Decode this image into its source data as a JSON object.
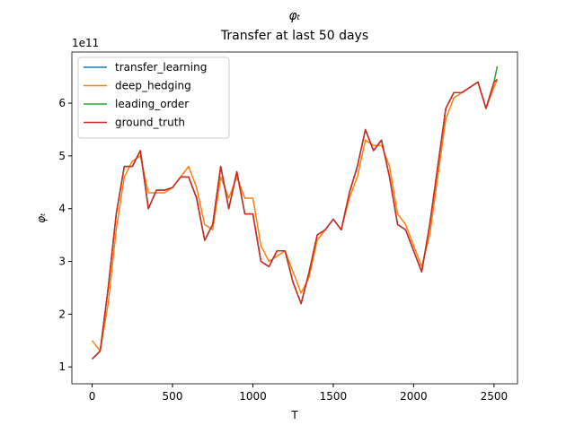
{
  "chart_data": {
    "type": "line",
    "title": "φₜ",
    "subtitle": "Transfer at last 50 days",
    "x_label": "T",
    "y_label": "φₜ",
    "y_offset_label": "1e11",
    "x": [
      0,
      50,
      100,
      150,
      200,
      250,
      300,
      350,
      400,
      450,
      500,
      550,
      600,
      650,
      700,
      750,
      800,
      850,
      900,
      950,
      1000,
      1050,
      1100,
      1150,
      1200,
      1250,
      1300,
      1350,
      1400,
      1450,
      1500,
      1550,
      1600,
      1650,
      1700,
      1750,
      1800,
      1850,
      1900,
      1950,
      2000,
      2050,
      2100,
      2150,
      2200,
      2250,
      2300,
      2350,
      2400,
      2450,
      2500,
      2520
    ],
    "series": [
      {
        "name": "transfer_learning",
        "color": "#1f77b4",
        "values": [
          1.15,
          1.3,
          2.5,
          3.9,
          4.8,
          4.8,
          5.1,
          4.0,
          4.35,
          4.35,
          4.4,
          4.6,
          4.6,
          4.2,
          3.4,
          3.7,
          4.8,
          4.0,
          4.7,
          3.9,
          3.9,
          3.0,
          2.9,
          3.2,
          3.2,
          2.6,
          2.2,
          2.8,
          3.5,
          3.6,
          3.8,
          3.6,
          4.3,
          4.8,
          5.5,
          5.1,
          5.3,
          4.6,
          3.7,
          3.6,
          3.2,
          2.8,
          3.7,
          4.8,
          5.9,
          6.2,
          6.2,
          6.3,
          6.4,
          5.9,
          6.4,
          6.45
        ]
      },
      {
        "name": "deep_hedging",
        "color": "#ff7f0e",
        "values": [
          1.5,
          1.3,
          2.2,
          3.6,
          4.6,
          4.9,
          5.0,
          4.3,
          4.3,
          4.3,
          4.4,
          4.6,
          4.8,
          4.4,
          3.7,
          3.6,
          4.6,
          4.2,
          4.6,
          4.2,
          4.2,
          3.3,
          3.0,
          3.1,
          3.2,
          2.8,
          2.4,
          2.7,
          3.4,
          3.6,
          3.8,
          3.6,
          4.2,
          4.6,
          5.3,
          5.2,
          5.2,
          4.8,
          3.9,
          3.7,
          3.3,
          2.9,
          3.5,
          4.6,
          5.7,
          6.1,
          6.2,
          6.3,
          6.4,
          5.9,
          6.3,
          6.45
        ]
      },
      {
        "name": "leading_order",
        "color": "#2ca02c",
        "values": [
          1.15,
          1.3,
          2.5,
          3.9,
          4.8,
          4.8,
          5.1,
          4.0,
          4.35,
          4.35,
          4.4,
          4.6,
          4.6,
          4.2,
          3.4,
          3.7,
          4.8,
          4.0,
          4.7,
          3.9,
          3.9,
          3.0,
          2.9,
          3.2,
          3.2,
          2.6,
          2.2,
          2.8,
          3.5,
          3.6,
          3.8,
          3.6,
          4.3,
          4.8,
          5.5,
          5.1,
          5.3,
          4.6,
          3.7,
          3.6,
          3.2,
          2.8,
          3.7,
          4.8,
          5.9,
          6.2,
          6.2,
          6.3,
          6.4,
          5.9,
          6.4,
          6.7
        ]
      },
      {
        "name": "ground_truth",
        "color": "#d62728",
        "values": [
          1.15,
          1.3,
          2.5,
          3.9,
          4.8,
          4.8,
          5.1,
          4.0,
          4.35,
          4.35,
          4.4,
          4.6,
          4.6,
          4.2,
          3.4,
          3.7,
          4.8,
          4.0,
          4.7,
          3.9,
          3.9,
          3.0,
          2.9,
          3.2,
          3.2,
          2.6,
          2.2,
          2.8,
          3.5,
          3.6,
          3.8,
          3.6,
          4.3,
          4.8,
          5.5,
          5.1,
          5.3,
          4.6,
          3.7,
          3.6,
          3.2,
          2.8,
          3.7,
          4.8,
          5.9,
          6.2,
          6.2,
          6.3,
          6.4,
          5.9,
          6.4,
          6.45
        ]
      }
    ],
    "xlim": [
      -126,
      2646
    ],
    "ylim": [
      0.68,
      6.97
    ],
    "xticks": [
      0,
      500,
      1000,
      1500,
      2000,
      2500
    ],
    "yticks": [
      1,
      2,
      3,
      4,
      5,
      6
    ],
    "grid": false,
    "legend": "upper left"
  }
}
